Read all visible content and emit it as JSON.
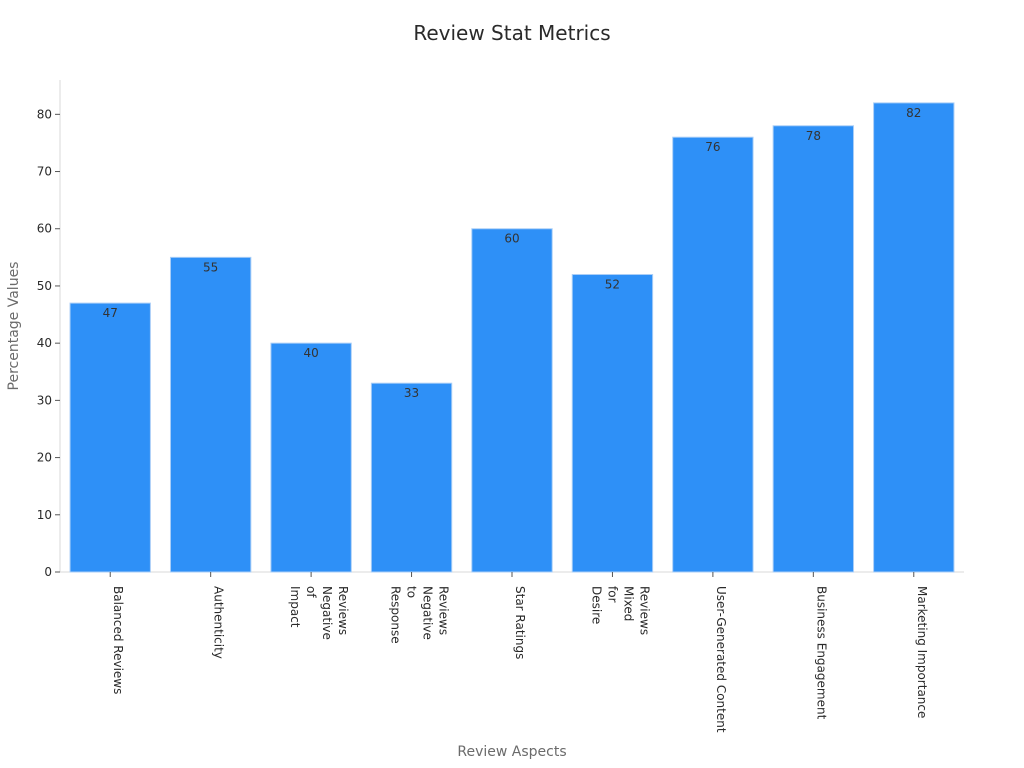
{
  "chart_data": {
    "type": "bar",
    "title": "Review Stat Metrics",
    "xlabel": "Review Aspects",
    "ylabel": "Percentage Values",
    "categories": [
      "Balanced Reviews",
      "Authenticity",
      "Impact of Negative Reviews",
      "Response to Negative Reviews",
      "Star Ratings",
      "Desire for Mixed Reviews",
      "User-Generated Content",
      "Business Engagement",
      "Marketing Importance"
    ],
    "category_lines": [
      [
        "Balanced Reviews"
      ],
      [
        "Authenticity"
      ],
      [
        "Impact",
        "of",
        "Negative",
        "Reviews"
      ],
      [
        "Response",
        "to",
        "Negative",
        "Reviews"
      ],
      [
        "Star Ratings"
      ],
      [
        "Desire",
        "for",
        "Mixed",
        "Reviews"
      ],
      [
        "User-Generated Content"
      ],
      [
        "Business Engagement"
      ],
      [
        "Marketing Importance"
      ]
    ],
    "values": [
      47,
      55,
      40,
      33,
      60,
      52,
      76,
      78,
      82
    ],
    "ylim": [
      0,
      86
    ],
    "yticks": [
      0,
      10,
      20,
      30,
      40,
      50,
      60,
      70,
      80
    ],
    "bar_color": "#2e90f7",
    "bar_edge_color": "#a9cef7",
    "grid": false,
    "legend": "none"
  }
}
